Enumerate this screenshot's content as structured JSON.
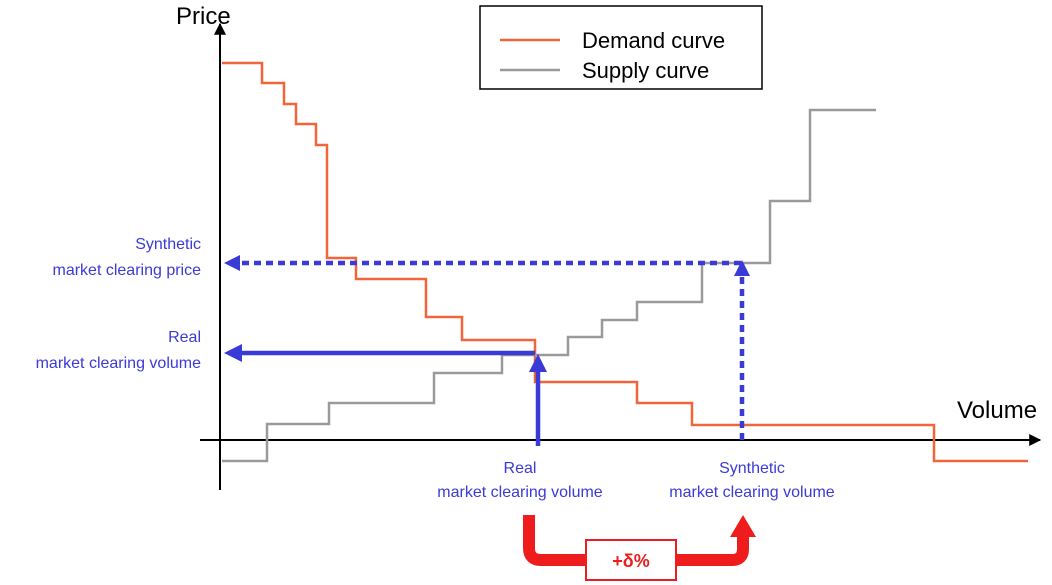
{
  "axes": {
    "y_label": "Price",
    "x_label": "Volume"
  },
  "legend": {
    "demand_label": "Demand curve",
    "supply_label": "Supply curve"
  },
  "annotations": {
    "synthetic_price_line1": "Synthetic",
    "synthetic_price_line2": "market clearing price",
    "real_left_line1": "Real",
    "real_left_line2": "market clearing volume",
    "real_bottom_line1": "Real",
    "real_bottom_line2": "market clearing volume",
    "synthetic_bottom_line1": "Synthetic",
    "synthetic_bottom_line2": "market clearing volume",
    "delta_badge": "+δ%"
  },
  "colors": {
    "demand": "#f2643a",
    "supply": "#9a9a9a",
    "annotation_blue": "#3a3ad6",
    "delta_red": "#ee1c1c",
    "axis": "#000000"
  }
}
